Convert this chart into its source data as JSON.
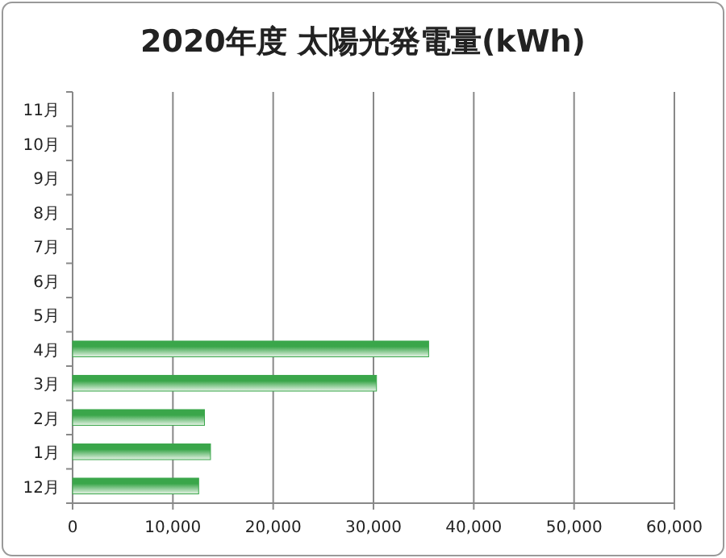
{
  "chart_data": {
    "type": "bar",
    "orientation": "horizontal",
    "title": "2020年度 太陽光発電量(kWh)",
    "categories": [
      "11月",
      "10月",
      "9月",
      "8月",
      "7月",
      "6月",
      "5月",
      "4月",
      "3月",
      "2月",
      "1月",
      "12月"
    ],
    "values": [
      null,
      null,
      null,
      null,
      null,
      null,
      null,
      35500,
      30300,
      13150,
      13750,
      12570
    ],
    "color": "#3aa64a",
    "xlim": [
      0,
      60000
    ],
    "xticks": [
      {
        "value": 0,
        "label": "0"
      },
      {
        "value": 10000,
        "label": "10,000"
      },
      {
        "value": 20000,
        "label": "20,000"
      },
      {
        "value": 30000,
        "label": "30,000"
      },
      {
        "value": 40000,
        "label": "40,000"
      },
      {
        "value": 50000,
        "label": "50,000"
      },
      {
        "value": 60000,
        "label": "60,000"
      }
    ],
    "grid": "x"
  }
}
